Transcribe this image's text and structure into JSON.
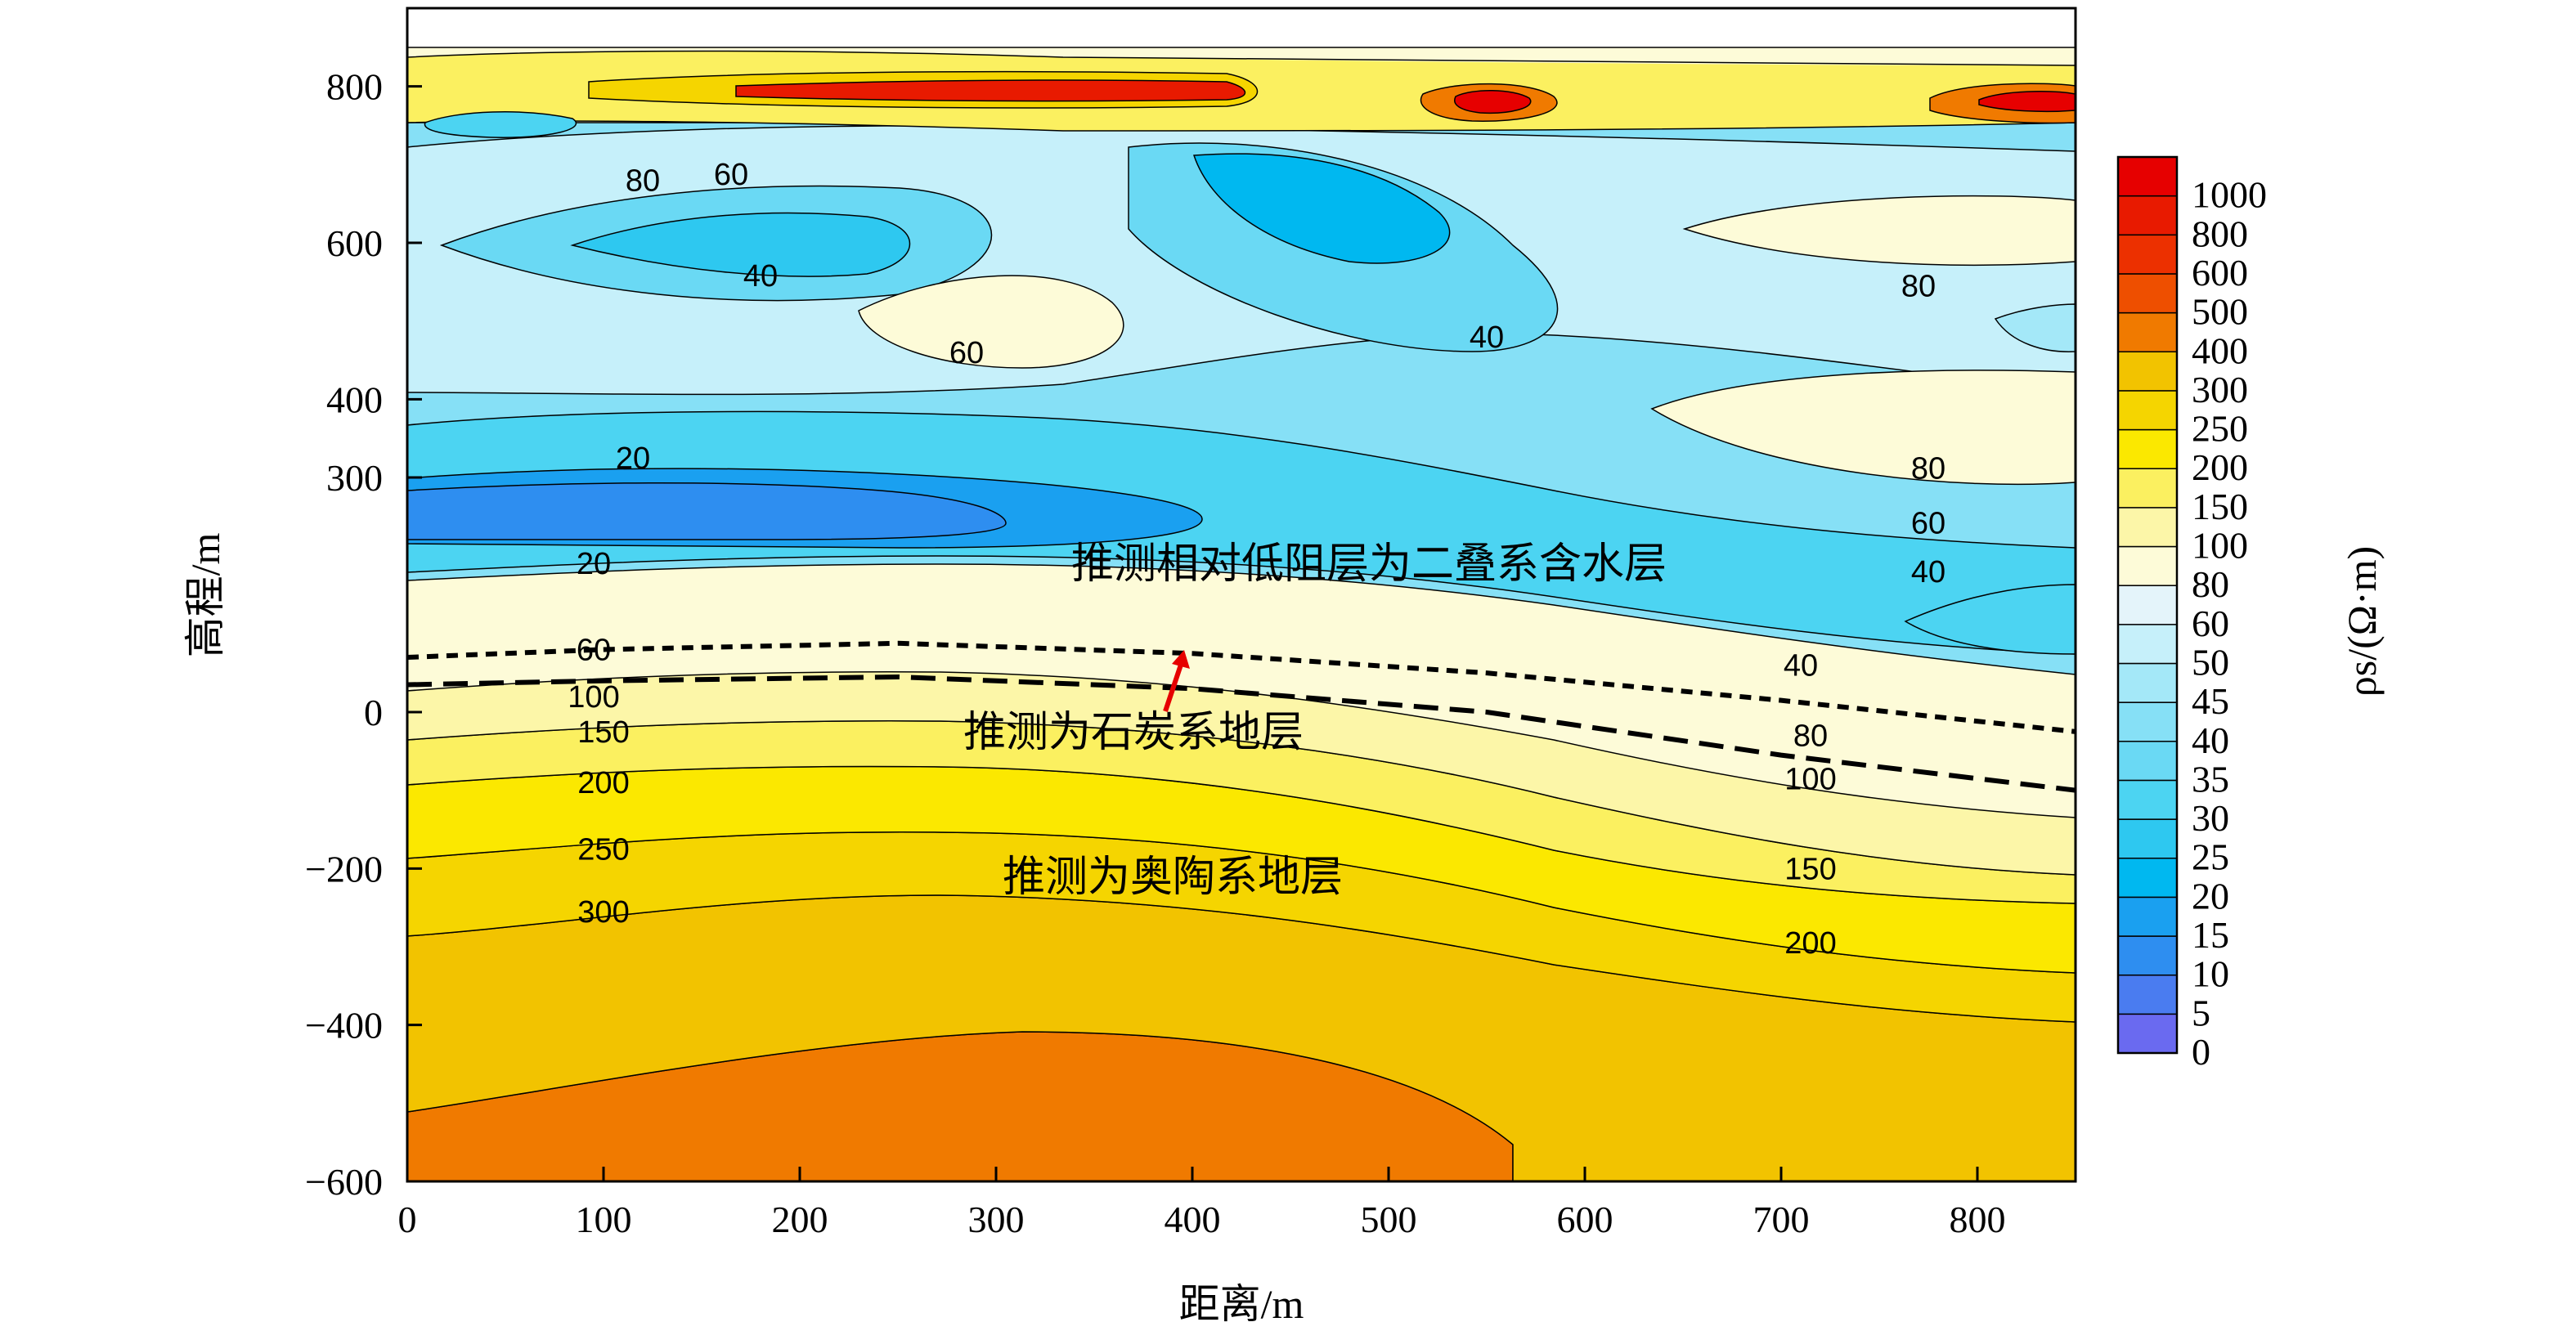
{
  "chart_data": {
    "type": "contour",
    "title": "",
    "xlabel": "距离/m",
    "ylabel": "高程/m",
    "colorbar_label": "ρs/(Ω·m)",
    "xlim": [
      0,
      850
    ],
    "ylim": [
      -600,
      900
    ],
    "x_ticks": [
      "0",
      "100",
      "200",
      "300",
      "400",
      "500",
      "600",
      "700",
      "800"
    ],
    "y_ticks": [
      "800",
      "600",
      "400",
      "300",
      "0",
      "−200",
      "−400",
      "−600"
    ],
    "colorbar": {
      "levels": [
        "0",
        "5",
        "10",
        "15",
        "20",
        "25",
        "30",
        "35",
        "40",
        "45",
        "50",
        "60",
        "80",
        "100",
        "150",
        "200",
        "250",
        "300",
        "400",
        "500",
        "600",
        "800",
        "1000"
      ],
      "colors": [
        "#6a6af0",
        "#4a7cf0",
        "#2e8ef0",
        "#1aa0f0",
        "#00b8f0",
        "#2ec8f0",
        "#4cd4f2",
        "#6ad9f4",
        "#86e0f6",
        "#a4e8f8",
        "#c6f0fa",
        "#e4f4fa",
        "#fdfbd8",
        "#fcf6a8",
        "#fbf060",
        "#fbe800",
        "#f5d500",
        "#f2c300",
        "#f07a00",
        "#ee4f00",
        "#ec3000",
        "#e81a00",
        "#e60000"
      ]
    },
    "contour_labels": [
      {
        "text": "80",
        "x": 120,
        "y": 680
      },
      {
        "text": "60",
        "x": 165,
        "y": 688
      },
      {
        "text": "40",
        "x": 180,
        "y": 558
      },
      {
        "text": "60",
        "x": 285,
        "y": 460
      },
      {
        "text": "40",
        "x": 550,
        "y": 480
      },
      {
        "text": "80",
        "x": 770,
        "y": 545
      },
      {
        "text": "80",
        "x": 775,
        "y": 312
      },
      {
        "text": "60",
        "x": 775,
        "y": 242
      },
      {
        "text": "40",
        "x": 775,
        "y": 180
      },
      {
        "text": "20",
        "x": 115,
        "y": 325
      },
      {
        "text": "20",
        "x": 95,
        "y": 190
      },
      {
        "text": "60",
        "x": 95,
        "y": 80
      },
      {
        "text": "100",
        "x": 95,
        "y": 20
      },
      {
        "text": "150",
        "x": 100,
        "y": -25
      },
      {
        "text": "200",
        "x": 100,
        "y": -90
      },
      {
        "text": "250",
        "x": 100,
        "y": -175
      },
      {
        "text": "300",
        "x": 100,
        "y": -255
      },
      {
        "text": "40",
        "x": 710,
        "y": 60
      },
      {
        "text": "80",
        "x": 715,
        "y": -30
      },
      {
        "text": "100",
        "x": 715,
        "y": -85
      },
      {
        "text": "150",
        "x": 715,
        "y": -200
      },
      {
        "text": "200",
        "x": 715,
        "y": -295
      }
    ],
    "annotations": [
      {
        "text": "推测相对低阻层为二叠系含水层",
        "x": 490,
        "y": 190
      },
      {
        "text": "推测为石炭系地层",
        "x": 370,
        "y": -25
      },
      {
        "text": "推测为奥陶系地层",
        "x": 390,
        "y": -210
      }
    ],
    "boundaries": [
      {
        "style": "dashed",
        "points": [
          [
            0,
            70
          ],
          [
            100,
            80
          ],
          [
            250,
            88
          ],
          [
            400,
            75
          ],
          [
            550,
            50
          ],
          [
            700,
            15
          ],
          [
            850,
            -25
          ]
        ]
      },
      {
        "style": "dashed",
        "points": [
          [
            0,
            35
          ],
          [
            100,
            40
          ],
          [
            250,
            45
          ],
          [
            400,
            30
          ],
          [
            550,
            0
          ],
          [
            700,
            -55
          ],
          [
            850,
            -100
          ]
        ]
      }
    ]
  }
}
